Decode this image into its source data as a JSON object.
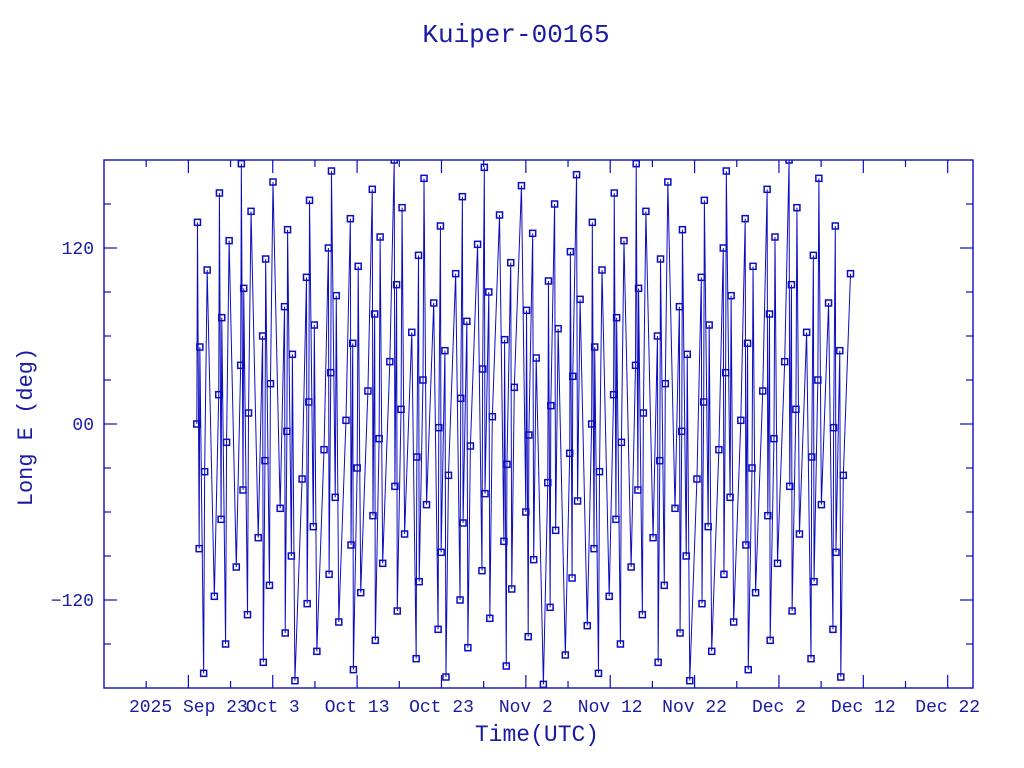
{
  "window": {
    "background": "#ffffff"
  },
  "colors": {
    "accent": "#0d0dc0",
    "text": "#1a1aa4",
    "background": "#ffffff"
  },
  "chart_data": {
    "type": "line",
    "title": "Kuiper-00165",
    "xlabel": "Time(UTC)",
    "ylabel": "Long E (deg)",
    "marker": "open-square",
    "grid": false,
    "legend": null,
    "x_axis": {
      "unit": "days from plot left edge (frame spans 2025 Sep 13 to Dec 25)",
      "range": [
        0,
        103
      ],
      "major_ticks": [
        {
          "day": 10,
          "label": "2025 Sep 23"
        },
        {
          "day": 20,
          "label": "Oct 3"
        },
        {
          "day": 30,
          "label": "Oct 13"
        },
        {
          "day": 40,
          "label": "Oct 23"
        },
        {
          "day": 50,
          "label": "Nov 2"
        },
        {
          "day": 60,
          "label": "Nov 12"
        },
        {
          "day": 70,
          "label": "Nov 22"
        },
        {
          "day": 80,
          "label": "Dec 2"
        },
        {
          "day": 90,
          "label": "Dec 12"
        },
        {
          "day": 100,
          "label": "Dec 22"
        }
      ],
      "minor_tick_days": [
        5,
        15,
        25,
        35,
        45,
        55,
        65,
        75,
        85,
        95
      ]
    },
    "y_axis": {
      "range": [
        -180,
        180
      ],
      "minor_step": 30,
      "major_ticks": [
        {
          "value": 120,
          "label": "120"
        },
        {
          "value": 0,
          "label": "00"
        },
        {
          "value": -120,
          "label": "−120"
        }
      ]
    },
    "series": [
      {
        "name": "long-e-deg",
        "x_days": [
          11,
          11.08,
          11.28,
          11.36,
          11.81,
          11.93,
          12.23,
          13.08,
          13.6,
          13.68,
          13.88,
          13.96,
          14.41,
          14.53,
          14.83,
          15.68,
          16.2,
          16.28,
          16.48,
          16.56,
          17.01,
          17.13,
          17.43,
          18.28,
          18.8,
          18.88,
          19.08,
          19.16,
          19.61,
          19.73,
          20.03,
          20.88,
          21.4,
          21.48,
          21.68,
          21.76,
          22.21,
          22.33,
          22.63,
          23.48,
          24,
          24.08,
          24.28,
          24.36,
          24.81,
          24.93,
          25.23,
          26.08,
          26.6,
          26.68,
          26.88,
          26.96,
          27.41,
          27.53,
          27.83,
          28.68,
          29.2,
          29.28,
          29.48,
          29.56,
          30.01,
          30.13,
          30.43,
          31.28,
          31.8,
          31.88,
          32.08,
          32.16,
          32.61,
          32.73,
          33.03,
          33.88,
          34.4,
          34.48,
          34.68,
          34.76,
          35.21,
          35.33,
          35.63,
          36.48,
          37,
          37.08,
          37.28,
          37.36,
          37.81,
          37.93,
          38.23,
          39.08,
          39.6,
          39.68,
          39.88,
          39.96,
          40.41,
          40.53,
          40.83,
          41.68,
          42.2,
          42.28,
          42.48,
          42.56,
          43.01,
          43.13,
          43.43,
          44.28,
          44.8,
          44.88,
          45.08,
          45.16,
          45.61,
          45.73,
          46.03,
          46.88,
          47.4,
          47.48,
          47.68,
          47.76,
          48.21,
          48.33,
          48.63,
          49.48,
          50,
          50.08,
          50.28,
          50.36,
          50.81,
          50.93,
          51.23,
          52.08,
          52.6,
          52.68,
          52.88,
          52.96,
          53.41,
          53.53,
          53.83,
          54.68,
          55.2,
          55.28,
          55.48,
          55.56,
          56.01,
          56.13,
          56.43,
          57.28,
          57.8,
          57.88,
          58.08,
          58.16,
          58.61,
          58.73,
          59.03,
          59.88,
          60.4,
          60.48,
          60.68,
          60.76,
          61.21,
          61.33,
          61.63,
          62.48,
          63,
          63.08,
          63.28,
          63.36,
          63.81,
          63.93,
          64.23,
          65.08,
          65.6,
          65.68,
          65.88,
          65.96,
          66.41,
          66.53,
          66.83,
          67.68,
          68.2,
          68.28,
          68.48,
          68.56,
          69.01,
          69.13,
          69.43,
          70.28,
          70.8,
          70.88,
          71.08,
          71.16,
          71.61,
          71.73,
          72.03,
          72.88,
          73.4,
          73.48,
          73.68,
          73.76,
          74.21,
          74.33,
          74.63,
          75.48,
          76,
          76.08,
          76.28,
          76.36,
          76.81,
          76.93,
          77.23,
          78.08,
          78.6,
          78.68,
          78.88,
          78.96,
          79.41,
          79.53,
          79.83,
          80.68,
          81.2,
          81.28,
          81.48,
          81.56,
          82.01,
          82.13,
          82.43,
          83.28,
          83.8,
          83.88,
          84.08,
          84.16,
          84.61,
          84.73,
          85.03,
          85.88,
          86.4,
          86.48,
          86.68,
          86.76,
          87.21,
          87.33,
          87.63,
          88.48
        ],
        "lon_deg": [
          0,
          137.5,
          -85,
          52.5,
          -170,
          -32.5,
          105,
          -117.5,
          20,
          157.5,
          -65,
          72.5,
          -150,
          -12.5,
          125,
          -97.5,
          40,
          177.5,
          -45,
          92.5,
          -130,
          7.5,
          145,
          -77.5,
          60,
          -162.5,
          -25,
          112.5,
          -110,
          27.5,
          165,
          -57.5,
          80,
          -142.5,
          -5,
          132.5,
          -90,
          47.5,
          -175,
          -37.5,
          100,
          -122.5,
          15,
          152.5,
          -70,
          67.5,
          -155,
          -17.5,
          120,
          -102.5,
          35,
          172.5,
          -50,
          87.5,
          -135,
          2.5,
          140,
          -82.5,
          55,
          -167.5,
          -30,
          107.5,
          -115,
          22.5,
          160,
          -62.5,
          75,
          -147.5,
          -10,
          127.5,
          -95,
          42.5,
          180,
          -42.5,
          95,
          -127.5,
          10,
          147.5,
          -75,
          62.5,
          -160,
          -22.5,
          115,
          -107.5,
          30,
          167.5,
          -55,
          82.5,
          -140,
          -2.5,
          135,
          -87.5,
          50,
          -172.5,
          -35,
          102.5,
          -120,
          17.5,
          155,
          -67.5,
          70,
          -152.5,
          -15,
          122.5,
          -100,
          37.5,
          175,
          -47.5,
          90,
          -132.5,
          5,
          142.5,
          -80,
          57.5,
          -165,
          -27.5,
          110,
          -112.5,
          25,
          162.5,
          -60,
          77.5,
          -145,
          -7.5,
          130,
          -92.5,
          45,
          -177.5,
          -40,
          97.5,
          -125,
          12.5,
          150,
          -72.5,
          65,
          -157.5,
          -20,
          117.5,
          -105,
          32.5,
          170,
          -52.5,
          85,
          -137.5,
          0,
          137.5,
          -85,
          52.5,
          -170,
          -32.5,
          105,
          -117.5,
          20,
          157.5,
          -65,
          72.5,
          -150,
          -12.5,
          125,
          -97.5,
          40,
          177.5,
          -45,
          92.5,
          -130,
          7.5,
          145,
          -77.5,
          60,
          -162.5,
          -25,
          112.5,
          -110,
          27.5,
          165,
          -57.5,
          80,
          -142.5,
          -5,
          132.5,
          -90,
          47.5,
          -175,
          -37.5,
          100,
          -122.5,
          15,
          152.5,
          -70,
          67.5,
          -155,
          -17.5,
          120,
          -102.5,
          35,
          172.5,
          -50,
          87.5,
          -135,
          2.5,
          140,
          -82.5,
          55,
          -167.5,
          -30,
          107.5,
          -115,
          22.5,
          160,
          -62.5,
          75,
          -147.5,
          -10,
          127.5,
          -95,
          42.5,
          180,
          -42.5,
          95,
          -127.5,
          10,
          147.5,
          -75,
          62.5,
          -160,
          -22.5,
          115,
          -107.5,
          30,
          167.5,
          -55,
          82.5,
          -140,
          -2.5,
          135,
          -87.5,
          50,
          -172.5,
          -35,
          102.5
        ]
      }
    ]
  }
}
